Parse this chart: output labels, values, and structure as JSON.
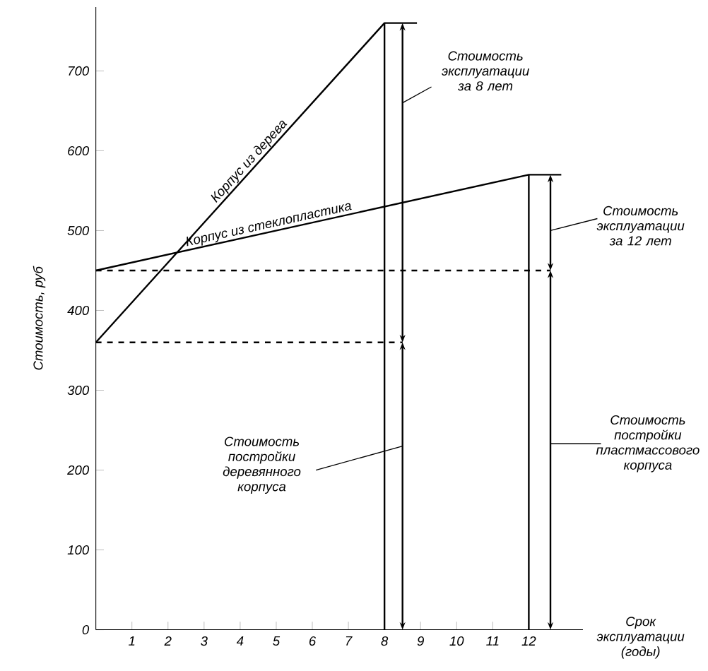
{
  "chart_data": {
    "type": "line",
    "xlabel": "Срок эксплуатации (годы)",
    "ylabel": "Стоимость, руб",
    "xlim": [
      0,
      13.5
    ],
    "ylim": [
      0,
      780
    ],
    "xticks": [
      1,
      2,
      3,
      4,
      5,
      6,
      7,
      8,
      9,
      10,
      11,
      12
    ],
    "yticks": [
      0,
      100,
      200,
      300,
      400,
      500,
      600,
      700
    ],
    "grid": false,
    "legend": false,
    "marker": "none",
    "series": [
      {
        "name": "Корпус из дерева",
        "color": "#000000",
        "line_style": "solid",
        "x": [
          0,
          8,
          8.9
        ],
        "values": [
          360,
          760,
          760
        ]
      },
      {
        "name": "Корпус из стеклопластика",
        "color": "#000000",
        "line_style": "solid",
        "x": [
          0,
          12,
          12.9
        ],
        "values": [
          450,
          570,
          570
        ]
      },
      {
        "color": "#000000",
        "line_style": "solid",
        "x": [
          8,
          8
        ],
        "values": [
          0,
          760
        ]
      },
      {
        "color": "#000000",
        "line_style": "solid",
        "x": [
          12,
          12
        ],
        "values": [
          0,
          570
        ]
      },
      {
        "color": "#000000",
        "line_style": "dashed",
        "x": [
          0,
          8.5
        ],
        "values": [
          360,
          360
        ]
      },
      {
        "color": "#000000",
        "line_style": "dashed",
        "x": [
          0,
          12.6
        ],
        "values": [
          450,
          450
        ]
      }
    ],
    "annotations": [
      "Стоимость эксплуатации за 8 лет",
      "Стоимость эксплуатации за 12 лет",
      "Стоимость постройки деревянного корпуса",
      "Стоимость постройки пластмассового корпуса"
    ]
  }
}
